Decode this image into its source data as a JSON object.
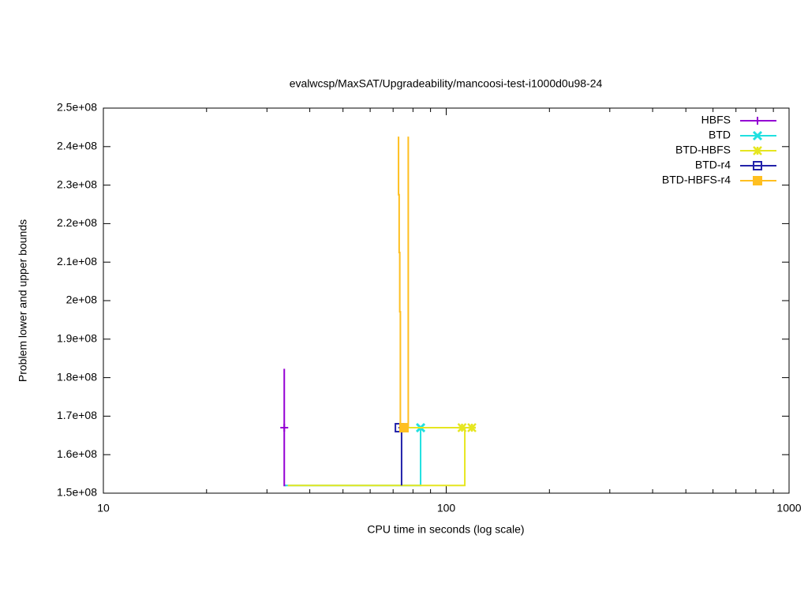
{
  "chart_data": {
    "type": "line",
    "title": "evalwcsp/MaxSAT/Upgradeability/mancoosi-test-i1000d0u98-24",
    "xlabel": "CPU time in seconds (log scale)",
    "ylabel": "Problem lower and upper bounds",
    "xscale": "log",
    "xlim": [
      10,
      1000
    ],
    "xticks": [
      10,
      100,
      1000
    ],
    "ylim": [
      150000000,
      250000000
    ],
    "yticks": [
      {
        "value": 150000000,
        "label": "1.5e+08"
      },
      {
        "value": 160000000,
        "label": "1.6e+08"
      },
      {
        "value": 170000000,
        "label": "1.7e+08"
      },
      {
        "value": 180000000,
        "label": "1.8e+08"
      },
      {
        "value": 190000000,
        "label": "1.9e+08"
      },
      {
        "value": 200000000,
        "label": "2e+08"
      },
      {
        "value": 210000000,
        "label": "2.1e+08"
      },
      {
        "value": 220000000,
        "label": "2.2e+08"
      },
      {
        "value": 230000000,
        "label": "2.3e+08"
      },
      {
        "value": 240000000,
        "label": "2.4e+08"
      },
      {
        "value": 250000000,
        "label": "2.5e+08"
      }
    ],
    "legend": "top-right",
    "series": [
      {
        "name": "HBFS",
        "color": "#9400d3",
        "symbol": "plus",
        "x": [
          33.7,
          33.7,
          34.1
        ],
        "values": [
          182300000,
          152000000,
          152000000
        ],
        "marker_x": [
          33.7
        ],
        "marker_values": [
          167000000
        ]
      },
      {
        "name": "BTD",
        "color": "#20e0e0",
        "symbol": "cross",
        "x": [
          33.9,
          84.2,
          84.2
        ],
        "values": [
          152000000,
          152000000,
          167000000
        ],
        "marker_x": [
          84.2
        ],
        "marker_values": [
          167000000
        ]
      },
      {
        "name": "BTD-HBFS",
        "color": "#e6e620",
        "symbol": "star",
        "x": [
          34.5,
          113.3,
          113.3,
          null,
          76.0,
          118.8
        ],
        "values": [
          152000000,
          152000000,
          167000000,
          null,
          167000000,
          167000000
        ],
        "marker_x": [
          111.2,
          118.8
        ],
        "marker_values": [
          167000000,
          167000000
        ]
      },
      {
        "name": "BTD-r4",
        "color": "#2222aa",
        "symbol": "square",
        "x": [
          74.1,
          74.1,
          72.6
        ],
        "values": [
          152000000,
          167000000,
          167000000
        ],
        "marker_x": [
          73.0
        ],
        "marker_values": [
          167000000
        ]
      },
      {
        "name": "BTD-HBFS-r4",
        "color": "#ffbf20",
        "symbol": "filled-square",
        "x": [
          72.6,
          72.6,
          72.9,
          72.9,
          73.2,
          73.2,
          73.5,
          73.5,
          null,
          77.5,
          77.5
        ],
        "values": [
          242600000,
          227500000,
          227500000,
          212500000,
          212500000,
          197100000,
          197100000,
          167000000,
          null,
          242600000,
          167000000
        ],
        "marker_x": [
          75.3
        ],
        "marker_values": [
          167000000
        ]
      }
    ]
  }
}
